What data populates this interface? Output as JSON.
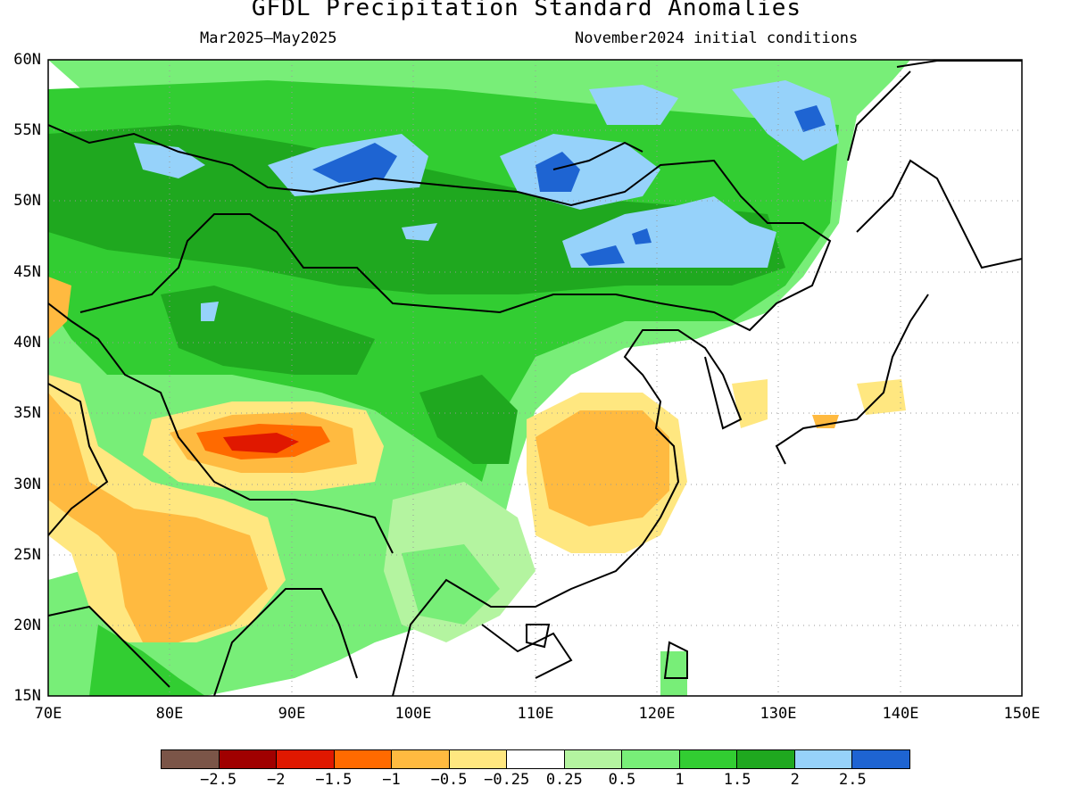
{
  "title": "GFDL Precipitation Standard Anomalies",
  "subtitle_left": "Mar2025—May2025",
  "subtitle_right": "November2024 initial conditions",
  "lat_labels": [
    "60N",
    "55N",
    "50N",
    "45N",
    "40N",
    "35N",
    "30N",
    "25N",
    "20N",
    "15N"
  ],
  "lon_labels": [
    "70E",
    "80E",
    "90E",
    "100E",
    "110E",
    "120E",
    "130E",
    "140E",
    "150E"
  ],
  "colorbar": {
    "colors": [
      "#7b5548",
      "#a00000",
      "#e01800",
      "#ff6a00",
      "#ffba40",
      "#ffe780",
      "#ffffff",
      "#b4f4a0",
      "#78ee78",
      "#32cd32",
      "#1fa81f",
      "#96d2fa",
      "#1e64d2"
    ],
    "labels": [
      "−2.5",
      "−2",
      "−1.5",
      "−1",
      "−0.5",
      "−0.25",
      "0.25",
      "0.5",
      "1",
      "1.5",
      "2",
      "2.5"
    ]
  },
  "map": {
    "lon_range": [
      70,
      150
    ],
    "lat_range": [
      15,
      60
    ],
    "grid_style": "dotted"
  }
}
